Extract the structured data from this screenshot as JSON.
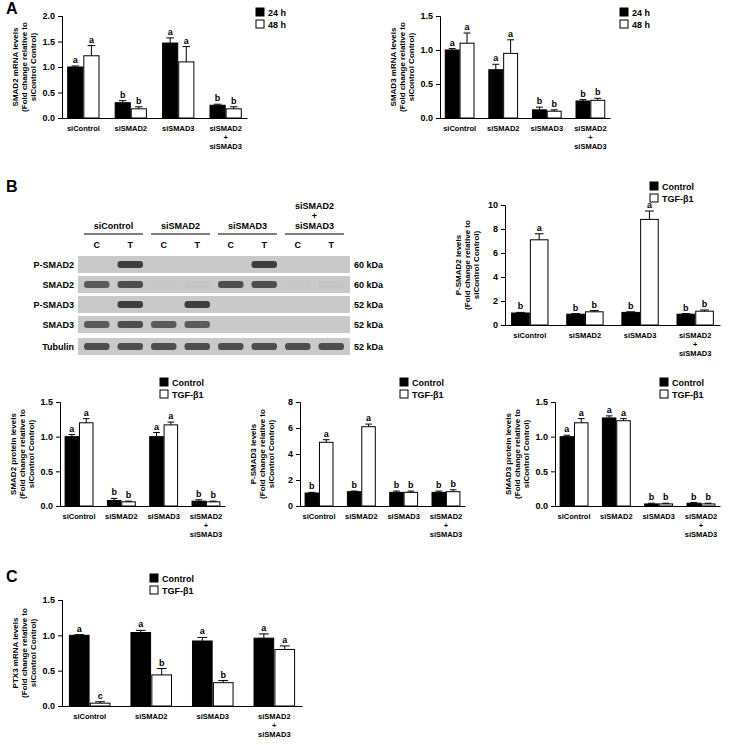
{
  "panels": [
    "A",
    "B",
    "C"
  ],
  "blot": {
    "groups": [
      "siControl",
      "siSMAD2",
      "siSMAD3",
      "siSMAD2 + siSMAD3"
    ],
    "lanes": [
      "C",
      "T",
      "C",
      "T",
      "C",
      "T",
      "C",
      "T"
    ],
    "rows": [
      {
        "label": "P-SMAD2",
        "size": "60 kDa",
        "bands": [
          0,
          0.9,
          0,
          0,
          0,
          0.9,
          0,
          0
        ]
      },
      {
        "label": "SMAD2",
        "size": "60 kDa",
        "bands": [
          0.8,
          0.85,
          0.1,
          0.15,
          0.85,
          0.85,
          0.1,
          0.15
        ]
      },
      {
        "label": "P-SMAD3",
        "size": "52 kDa",
        "bands": [
          0,
          0.9,
          0,
          0.9,
          0,
          0,
          0,
          0
        ]
      },
      {
        "label": "SMAD3",
        "size": "52 kDa",
        "bands": [
          0.8,
          0.85,
          0.8,
          0.8,
          0,
          0,
          0,
          0
        ]
      },
      {
        "label": "Tubulin",
        "size": "52 kDa",
        "bands": [
          0.85,
          0.85,
          0.85,
          0.85,
          0.85,
          0.85,
          0.85,
          0.85
        ]
      }
    ]
  },
  "chart_data": [
    {
      "type": "bar",
      "y_label": [
        "SMAD2 mRNA levels",
        "(Fold change relative to",
        "siControl Control)"
      ],
      "categories": [
        "siControl",
        "siSMAD2",
        "siSMAD3",
        "siSMAD2 + siSMAD3"
      ],
      "series": [
        {
          "name": "24 h",
          "color": "#000000",
          "values": [
            1.0,
            0.3,
            1.47,
            0.25
          ],
          "errors": [
            0.02,
            0.04,
            0.1,
            0.02
          ],
          "letters": [
            "a",
            "b",
            "a",
            "b"
          ]
        },
        {
          "name": "48 h",
          "color": "#ffffff",
          "values": [
            1.22,
            0.18,
            1.1,
            0.18
          ],
          "errors": [
            0.2,
            0.04,
            0.3,
            0.04
          ],
          "letters": [
            "a",
            "b",
            "a",
            "b"
          ]
        }
      ],
      "ylim": [
        0,
        2
      ],
      "yticks": [
        {
          "value": 0,
          "label": "0.0"
        },
        0.5,
        {
          "value": 1,
          "label": "1.0"
        },
        1.5,
        {
          "value": 2,
          "label": "2.0"
        }
      ],
      "grid": false,
      "legend": "top-right"
    },
    {
      "type": "bar",
      "y_label": [
        "SMAD3 mRNA levels",
        "(Fold change relative to",
        "siControl Control)"
      ],
      "categories": [
        "siControl",
        "siSMAD2",
        "siSMAD3",
        "siSMAD2 + siSMAD3"
      ],
      "series": [
        {
          "name": "24 h",
          "color": "#000000",
          "values": [
            1.0,
            0.71,
            0.12,
            0.25
          ],
          "errors": [
            0.02,
            0.08,
            0.04,
            0.02
          ],
          "letters": [
            "a",
            "a",
            "b",
            "b"
          ]
        },
        {
          "name": "48 h",
          "color": "#ffffff",
          "values": [
            1.1,
            0.95,
            0.1,
            0.26
          ],
          "errors": [
            0.15,
            0.2,
            0.02,
            0.03
          ],
          "letters": [
            "a",
            "a",
            "b",
            "b"
          ]
        }
      ],
      "ylim": [
        0,
        1.5
      ],
      "yticks": [
        {
          "value": 0,
          "label": "0.0"
        },
        0.5,
        {
          "value": 1,
          "label": "1.0"
        },
        1.5
      ],
      "grid": false,
      "legend": "top-right"
    },
    {
      "type": "bar",
      "y_label": [
        "P-SMAD2 levels",
        "(Fold change relative to",
        "siControl Control)"
      ],
      "categories": [
        "siControl",
        "siSMAD2",
        "siSMAD3",
        "siSMAD2 + siSMAD3"
      ],
      "series": [
        {
          "name": "Control",
          "color": "#000000",
          "values": [
            1.0,
            0.9,
            1.05,
            0.9
          ],
          "errors": [
            0.05,
            0.05,
            0.05,
            0.05
          ],
          "letters": [
            "b",
            "b",
            "b",
            "b"
          ]
        },
        {
          "name": "TGF-β1",
          "color": "#ffffff",
          "values": [
            7.1,
            1.1,
            8.8,
            1.15
          ],
          "errors": [
            0.5,
            0.1,
            0.7,
            0.1
          ],
          "letters": [
            "a",
            "b",
            "a",
            "b"
          ]
        }
      ],
      "ylim": [
        0,
        10
      ],
      "yticks": [
        0,
        2,
        4,
        6,
        8,
        10
      ],
      "grid": false,
      "legend": "top-right"
    },
    {
      "type": "bar",
      "y_label": [
        "SMAD2 protein levels",
        "(Fold change relative to",
        "siControl Control)"
      ],
      "categories": [
        "siControl",
        "siSMAD2",
        "siSMAD3",
        "siSMAD2 + siSMAD3"
      ],
      "series": [
        {
          "name": "Control",
          "color": "#000000",
          "values": [
            1.0,
            0.08,
            1.0,
            0.07
          ],
          "errors": [
            0.03,
            0.03,
            0.06,
            0.02
          ],
          "letters": [
            "a",
            "b",
            "a",
            "b"
          ]
        },
        {
          "name": "TGF-β1",
          "color": "#ffffff",
          "values": [
            1.2,
            0.06,
            1.17,
            0.06
          ],
          "errors": [
            0.06,
            0.01,
            0.04,
            0.01
          ],
          "letters": [
            "a",
            "b",
            "a",
            "b"
          ]
        }
      ],
      "ylim": [
        0,
        1.5
      ],
      "yticks": [
        {
          "value": 0,
          "label": "0.0"
        },
        0.5,
        {
          "value": 1,
          "label": "1.0"
        },
        1.5
      ],
      "grid": false,
      "legend": "top-right"
    },
    {
      "type": "bar",
      "y_label": [
        "P-SMAD3 levels",
        "(Fold change relative to",
        "siControl Control)"
      ],
      "categories": [
        "siControl",
        "siSMAD2",
        "siSMAD3",
        "siSMAD2 + siSMAD3"
      ],
      "series": [
        {
          "name": "Control",
          "color": "#000000",
          "values": [
            1.0,
            1.1,
            1.05,
            1.05
          ],
          "errors": [
            0.05,
            0.05,
            0.1,
            0.1
          ],
          "letters": [
            "b",
            "b",
            "b",
            "b"
          ]
        },
        {
          "name": "TGF-β1",
          "color": "#ffffff",
          "values": [
            4.9,
            6.1,
            1.05,
            1.1
          ],
          "errors": [
            0.2,
            0.2,
            0.1,
            0.15
          ],
          "letters": [
            "a",
            "a",
            "b",
            "b"
          ]
        }
      ],
      "ylim": [
        0,
        8
      ],
      "yticks": [
        0,
        2,
        4,
        6,
        8
      ],
      "grid": false,
      "legend": "top-right"
    },
    {
      "type": "bar",
      "y_label": [
        "SMAD3 protein levels",
        "(Fold change relative to",
        "siControl Control)"
      ],
      "categories": [
        "siControl",
        "siSMAD2",
        "siSMAD3",
        "siSMAD2 + siSMAD3"
      ],
      "series": [
        {
          "name": "Control",
          "color": "#000000",
          "values": [
            1.0,
            1.27,
            0.03,
            0.04
          ],
          "errors": [
            0.02,
            0.03,
            0.01,
            0.01
          ],
          "letters": [
            "a",
            "a",
            "b",
            "b"
          ]
        },
        {
          "name": "TGF-β1",
          "color": "#ffffff",
          "values": [
            1.2,
            1.23,
            0.03,
            0.03
          ],
          "errors": [
            0.06,
            0.03,
            0.01,
            0.01
          ],
          "letters": [
            "a",
            "a",
            "b",
            "b"
          ]
        }
      ],
      "ylim": [
        0,
        1.5
      ],
      "yticks": [
        {
          "value": 0,
          "label": "0.0"
        },
        0.5,
        {
          "value": 1,
          "label": "1.0"
        },
        1.5
      ],
      "grid": false,
      "legend": "top-right"
    },
    {
      "type": "bar",
      "y_label": [
        "PTX3 mRNA levels",
        "(Fold change relative to",
        "siControl Control)"
      ],
      "categories": [
        "siControl",
        "siSMAD2",
        "siSMAD3",
        "siSMAD2 + siSMAD3"
      ],
      "series": [
        {
          "name": "Control",
          "color": "#000000",
          "values": [
            1.0,
            1.04,
            0.92,
            0.96
          ],
          "errors": [
            0.01,
            0.03,
            0.05,
            0.06
          ],
          "letters": [
            "a",
            "a",
            "a",
            "a"
          ]
        },
        {
          "name": "TGF-β1",
          "color": "#ffffff",
          "values": [
            0.04,
            0.44,
            0.33,
            0.8
          ],
          "errors": [
            0.02,
            0.09,
            0.03,
            0.05
          ],
          "letters": [
            "c",
            "b",
            "b",
            "a"
          ]
        }
      ],
      "ylim": [
        0,
        1.5
      ],
      "yticks": [
        {
          "value": 0,
          "label": "0.0"
        },
        0.5,
        {
          "value": 1,
          "label": "1.0"
        },
        1.5
      ],
      "grid": false,
      "legend": "top"
    }
  ]
}
